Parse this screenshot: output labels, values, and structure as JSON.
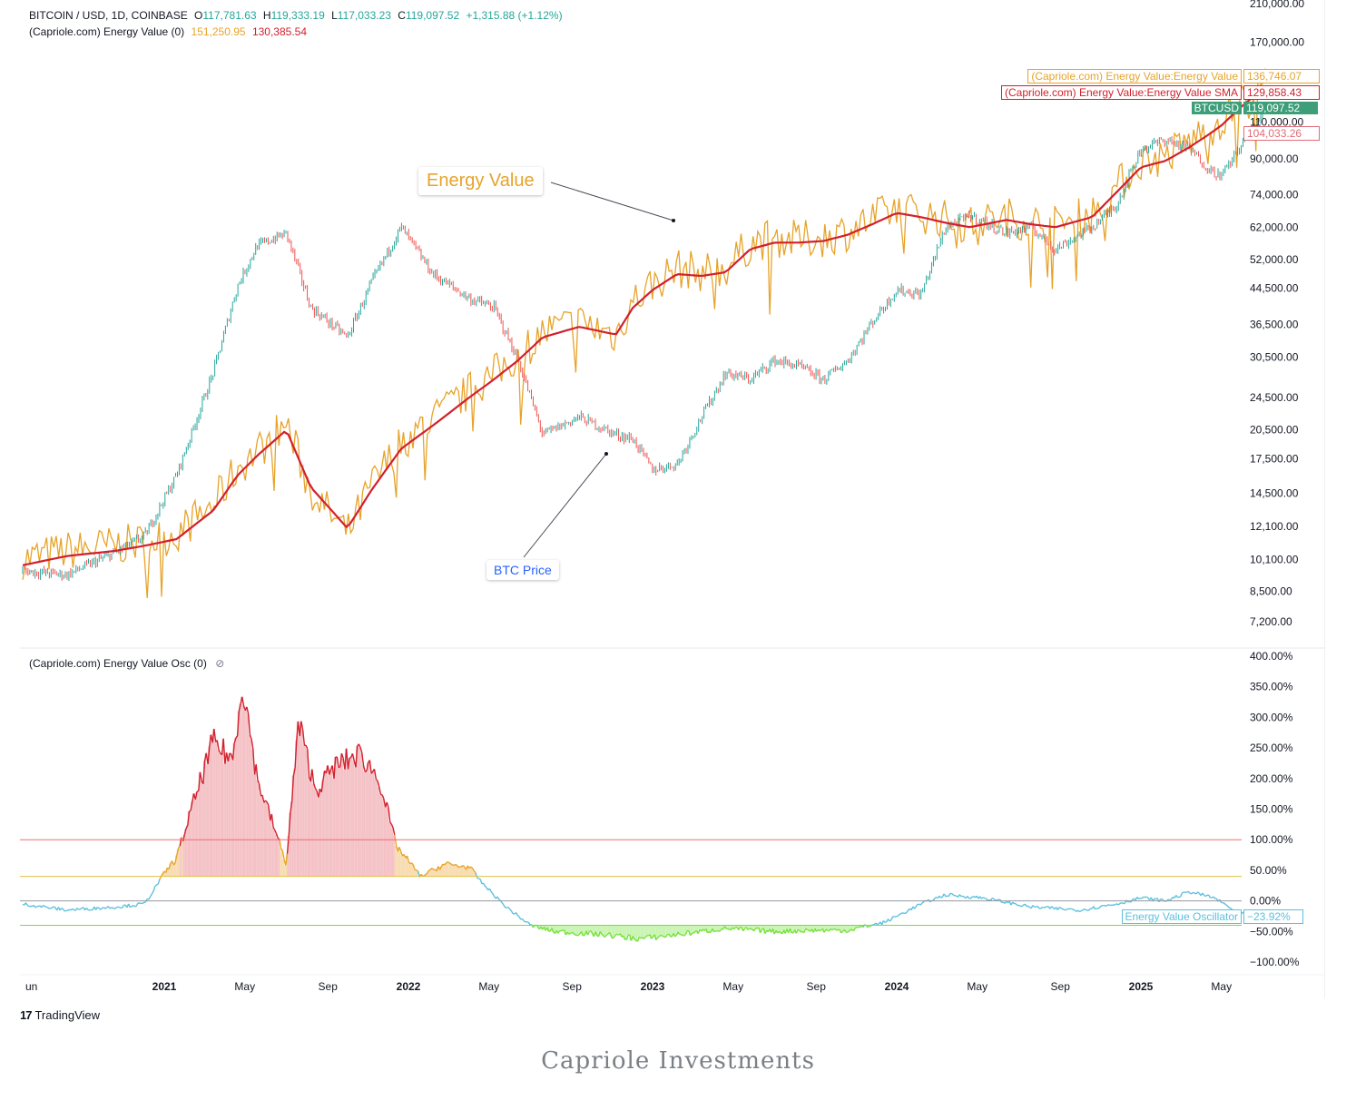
{
  "header": {
    "symbol": "BITCOIN / USD, 1D, COINBASE",
    "open_label": "O",
    "open": "117,781.63",
    "high_label": "H",
    "high": "119,333.19",
    "low_label": "L",
    "low": "117,033.23",
    "close_label": "C",
    "close": "119,097.52",
    "change": "+1,315.88 (+1.12%)",
    "indicator_name": "(Capriole.com) Energy Value (0)",
    "energy_value": "151,250.95",
    "energy_sma": "130,385.54"
  },
  "oscillator_header": {
    "name": "(Capriole.com) Energy Value Osc (0)",
    "icon": "eye-off-icon"
  },
  "annotations": {
    "energy_value": "Energy Value",
    "btc_price": "BTC Price"
  },
  "price_tags": [
    {
      "name": "(Capriole.com) Energy Value:Energy Value",
      "value": "136,746.07",
      "color": "#e7a32a",
      "style": "outline"
    },
    {
      "name": "(Capriole.com) Energy Value:Energy Value SMA",
      "value": "129,858.43",
      "color": "#d21f2c",
      "style": "outline"
    },
    {
      "name": "BTCUSD",
      "value": "119,097.52",
      "color": "#3d9e79",
      "style": "filled"
    },
    {
      "name": "",
      "value": "104,033.26",
      "color": "#e06b78",
      "style": "outline"
    }
  ],
  "osc_tag": {
    "name": "Energy Value Oscillator",
    "value": "−23.92%",
    "color": "#5bc0de"
  },
  "branding": {
    "tv_logo_mark": "17",
    "tv_name": "TradingView",
    "footer": "Capriole Investments"
  },
  "colors": {
    "btc_up": "#26a69a",
    "btc_down": "#ef5350",
    "energy_value": "#e7a32a",
    "energy_sma": "#d21f2c",
    "osc_blue": "#5bc0de",
    "osc_green": "#76e23a",
    "osc_red": "#d21f2c",
    "osc_orange": "#e7a32a"
  },
  "chart_data": [
    {
      "type": "line",
      "title": "BITCOIN / USD, 1D, COINBASE",
      "scale": "log",
      "ylim": [
        6600,
        210000
      ],
      "x_tick_labels": [
        "un",
        "2021",
        "May",
        "Sep",
        "2022",
        "May",
        "Sep",
        "2023",
        "May",
        "Sep",
        "2024",
        "May",
        "Sep",
        "2025",
        "May"
      ],
      "y_tick_labels": [
        "210,000.00",
        "170,000.00",
        "110,000.00",
        "90,000.00",
        "74,000.00",
        "62,000.00",
        "52,000.00",
        "44,500.00",
        "36,500.00",
        "30,500.00",
        "24,500.00",
        "20,500.00",
        "17,500.00",
        "14,500.00",
        "12,100.00",
        "10,100.00",
        "8,500.00",
        "7,200.00"
      ],
      "y_ticks": [
        210000,
        170000,
        110000,
        90000,
        74000,
        62000,
        52000,
        44500,
        36500,
        30500,
        24500,
        20500,
        17500,
        14500,
        12100,
        10100,
        8500,
        7200
      ],
      "x_dates": [
        2020.42,
        2020.6,
        2020.8,
        2020.92,
        2021.05,
        2021.2,
        2021.3,
        2021.38,
        2021.5,
        2021.6,
        2021.75,
        2021.85,
        2021.97,
        2022.1,
        2022.25,
        2022.35,
        2022.45,
        2022.55,
        2022.7,
        2022.85,
        2022.92,
        2023.0,
        2023.1,
        2023.2,
        2023.3,
        2023.4,
        2023.5,
        2023.6,
        2023.7,
        2023.8,
        2023.9,
        2024.0,
        2024.1,
        2024.2,
        2024.3,
        2024.45,
        2024.55,
        2024.65,
        2024.8,
        2024.9,
        2025.0,
        2025.1,
        2025.2,
        2025.28,
        2025.33,
        2025.4,
        2025.45,
        2025.52
      ],
      "series": [
        {
          "name": "BTC Price",
          "values": [
            9500,
            9300,
            10500,
            11500,
            16000,
            28000,
            45000,
            56000,
            60000,
            40000,
            34000,
            46000,
            62000,
            48000,
            42000,
            40000,
            30000,
            20000,
            22000,
            20000,
            19500,
            16500,
            17000,
            22000,
            28000,
            27000,
            30000,
            29000,
            27000,
            30000,
            37000,
            44000,
            43000,
            62000,
            66000,
            60000,
            62000,
            55000,
            62000,
            70000,
            95000,
            100000,
            95000,
            85000,
            82000,
            95000,
            105000,
            119000
          ]
        },
        {
          "name": "Energy Value",
          "values": [
            10000,
            10500,
            10800,
            11000,
            11500,
            13500,
            16500,
            18000,
            21000,
            14500,
            11500,
            15000,
            19000,
            21500,
            25000,
            27500,
            30500,
            34500,
            36500,
            34000,
            41000,
            45000,
            49000,
            48000,
            49000,
            56000,
            58000,
            57000,
            58000,
            60000,
            64000,
            68000,
            66000,
            64000,
            62000,
            65000,
            63000,
            62000,
            66000,
            76000,
            88000,
            90000,
            98000,
            105000,
            110000,
            120000,
            128000,
            136000
          ]
        },
        {
          "name": "Energy Value SMA",
          "values": [
            9800,
            10300,
            10600,
            10900,
            11300,
            13200,
            16000,
            17800,
            20500,
            15000,
            12000,
            14800,
            18500,
            21000,
            24500,
            27000,
            30000,
            34000,
            36000,
            34500,
            40000,
            44000,
            48000,
            47500,
            48500,
            55000,
            57000,
            57000,
            57500,
            59500,
            63000,
            67000,
            65500,
            63500,
            62000,
            64500,
            63000,
            62000,
            65500,
            75000,
            86000,
            89000,
            96000,
            103000,
            108000,
            118000,
            125000,
            130000
          ]
        }
      ]
    },
    {
      "type": "line",
      "title": "(Capriole.com) Energy Value Osc (0)",
      "ylim": [
        -110,
        410
      ],
      "y_tick_labels": [
        "400.00%",
        "350.00%",
        "300.00%",
        "250.00%",
        "200.00%",
        "150.00%",
        "100.00%",
        "50.00%",
        "0.00%",
        "−50.00%",
        "−100.00%"
      ],
      "y_ticks": [
        400,
        350,
        300,
        250,
        200,
        150,
        100,
        50,
        0,
        -50,
        -100
      ],
      "thresholds": [
        100,
        40,
        0,
        -40
      ],
      "x_dates": [
        2020.42,
        2020.6,
        2020.8,
        2020.92,
        2021.0,
        2021.05,
        2021.12,
        2021.2,
        2021.28,
        2021.32,
        2021.38,
        2021.45,
        2021.5,
        2021.55,
        2021.62,
        2021.7,
        2021.8,
        2021.88,
        2021.95,
        2022.05,
        2022.15,
        2022.25,
        2022.3,
        2022.4,
        2022.5,
        2022.6,
        2022.8,
        2022.95,
        2023.1,
        2023.3,
        2023.5,
        2023.65,
        2023.8,
        2023.95,
        2024.1,
        2024.2,
        2024.35,
        2024.55,
        2024.75,
        2024.9,
        2025.0,
        2025.1,
        2025.2,
        2025.3,
        2025.4,
        2025.52
      ],
      "series": [
        {
          "name": "Energy Value Oscillator",
          "values": [
            -5,
            -15,
            -10,
            -5,
            45,
            70,
            160,
            260,
            230,
            360,
            200,
            120,
            60,
            290,
            180,
            220,
            240,
            200,
            90,
            40,
            60,
            55,
            30,
            -10,
            -40,
            -50,
            -55,
            -62,
            -55,
            -45,
            -50,
            -48,
            -48,
            -35,
            -5,
            10,
            5,
            -10,
            -15,
            -5,
            5,
            0,
            15,
            5,
            -20,
            -24
          ]
        }
      ]
    }
  ]
}
